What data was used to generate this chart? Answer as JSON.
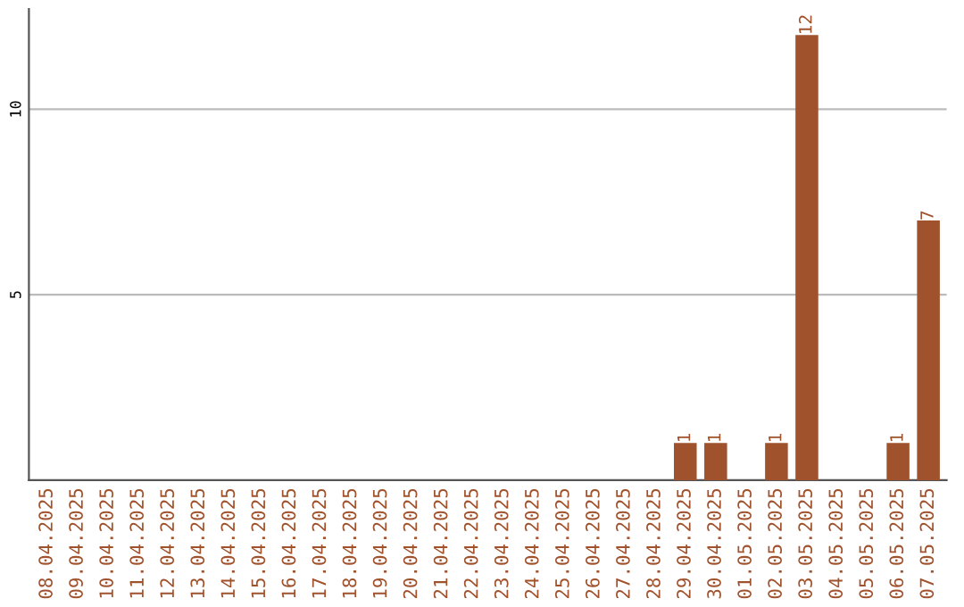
{
  "chart_data": {
    "type": "bar",
    "categories": [
      "08.04.2025",
      "09.04.2025",
      "10.04.2025",
      "11.04.2025",
      "12.04.2025",
      "13.04.2025",
      "14.04.2025",
      "15.04.2025",
      "16.04.2025",
      "17.04.2025",
      "18.04.2025",
      "19.04.2025",
      "20.04.2025",
      "21.04.2025",
      "22.04.2025",
      "23.04.2025",
      "24.04.2025",
      "25.04.2025",
      "26.04.2025",
      "27.04.2025",
      "28.04.2025",
      "29.04.2025",
      "30.04.2025",
      "01.05.2025",
      "02.05.2025",
      "03.05.2025",
      "04.05.2025",
      "05.05.2025",
      "06.05.2025",
      "07.05.2025"
    ],
    "values": [
      0,
      0,
      0,
      0,
      0,
      0,
      0,
      0,
      0,
      0,
      0,
      0,
      0,
      0,
      0,
      0,
      0,
      0,
      0,
      0,
      0,
      1,
      1,
      0,
      1,
      12,
      0,
      0,
      1,
      7
    ],
    "value_labels": [
      null,
      null,
      null,
      null,
      null,
      null,
      null,
      null,
      null,
      null,
      null,
      null,
      null,
      null,
      null,
      null,
      null,
      null,
      null,
      null,
      null,
      "1",
      "1",
      null,
      "1",
      "12",
      null,
      null,
      "1",
      "7"
    ],
    "color": "#a0522d",
    "ylim": [
      0,
      12.7
    ],
    "yticks": [
      5,
      10
    ],
    "grid": "y"
  }
}
